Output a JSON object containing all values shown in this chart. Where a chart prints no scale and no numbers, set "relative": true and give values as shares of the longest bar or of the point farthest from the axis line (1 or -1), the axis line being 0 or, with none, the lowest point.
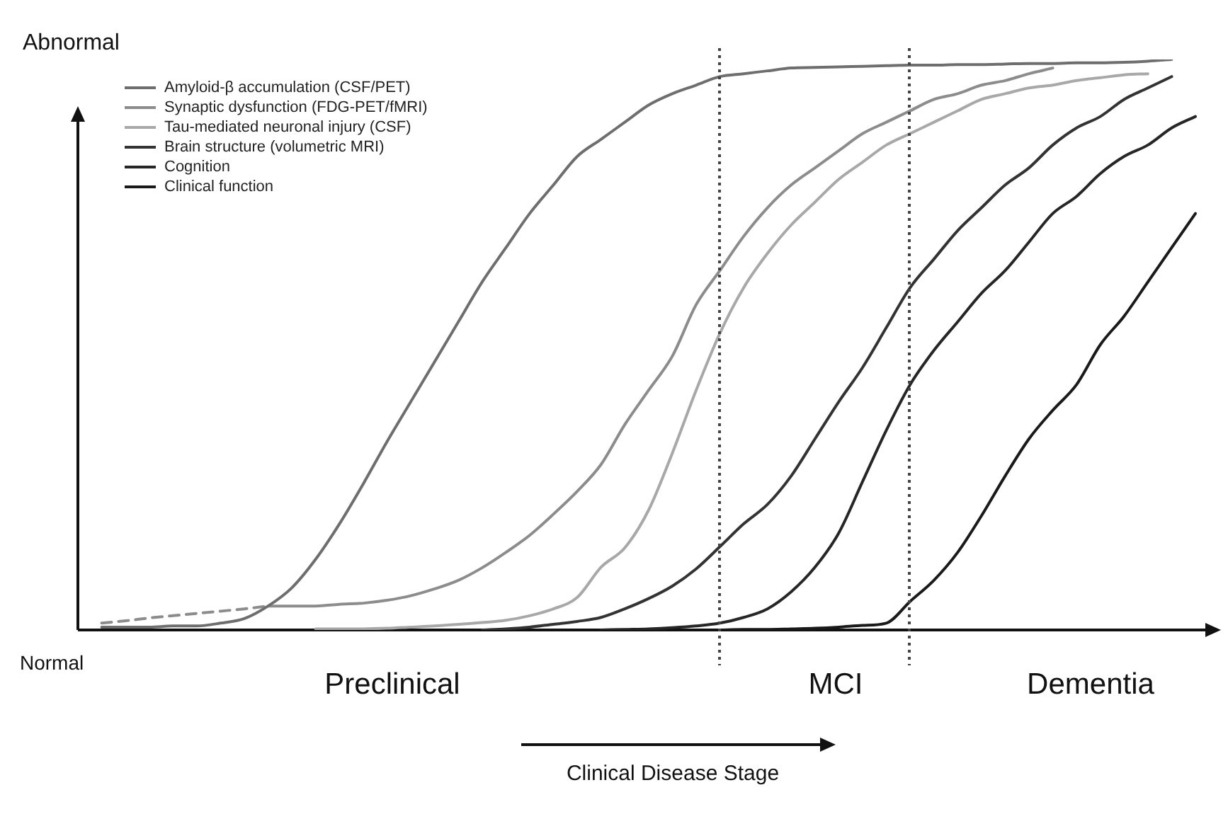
{
  "chart_data": {
    "type": "line",
    "relative": true,
    "legend": "top left",
    "categories": [
      null,
      null,
      null,
      null,
      null,
      null,
      null,
      null,
      null,
      null,
      null,
      null,
      null,
      null,
      null,
      null,
      null,
      null,
      null,
      null,
      null,
      null,
      null,
      null,
      null,
      null,
      null,
      null,
      null,
      null,
      null,
      null,
      null,
      null,
      null,
      null,
      null,
      null,
      null,
      null,
      null,
      null,
      null,
      null,
      null,
      null,
      null,
      null
    ],
    "series": [
      {
        "name": "Amyloid-β accumulation (CSF/PET)",
        "color": "#6e6e6e",
        "values": [
          null,
          0.005,
          0.005,
          0.005,
          0.007,
          0.007,
          0.012,
          0.02,
          0.042,
          0.074,
          0.124,
          0.186,
          0.256,
          0.33,
          0.4,
          0.47,
          0.54,
          0.61,
          0.67,
          0.73,
          0.78,
          0.83,
          0.86,
          0.89,
          0.92,
          0.94,
          0.955,
          0.97,
          0.975,
          0.98,
          0.985,
          0.986,
          0.987,
          0.988,
          0.989,
          0.99,
          0.99,
          0.991,
          0.991,
          0.992,
          0.993,
          0.993,
          0.994,
          0.994,
          0.995,
          0.997,
          1,
          null
        ]
      },
      {
        "name": "Synaptic dysfunction (FDG-PET/fMRI)",
        "color": "#8c8c8c",
        "values": [
          null,
          null,
          null,
          null,
          null,
          null,
          null,
          null,
          0.042,
          0.042,
          0.042,
          0.045,
          0.047,
          0.052,
          0.06,
          0.072,
          0.087,
          0.109,
          0.136,
          0.166,
          0.203,
          0.243,
          0.29,
          0.36,
          0.42,
          0.48,
          0.57,
          0.63,
          0.69,
          0.74,
          0.78,
          0.81,
          0.84,
          0.87,
          0.89,
          0.91,
          0.93,
          0.94,
          0.955,
          0.963,
          0.975,
          0.985,
          null,
          null,
          null,
          null,
          null,
          null
        ]
      },
      {
        "color": "#8c8c8c",
        "line_style": "dashed",
        "values": [
          null,
          0.012,
          0.016,
          0.021,
          0.025,
          0.029,
          0.033,
          0.037,
          0.042,
          null,
          null,
          null,
          null,
          null,
          null,
          null,
          null,
          null,
          null,
          null,
          null,
          null,
          null,
          null,
          null,
          null,
          null,
          null,
          null,
          null,
          null,
          null,
          null,
          null,
          null,
          null,
          null,
          null,
          null,
          null,
          null,
          null,
          null,
          null,
          null,
          null,
          null,
          null
        ]
      },
      {
        "name": "Tau-mediated neuronal injury (CSF)",
        "color": "#a8a8a8",
        "values": [
          null,
          null,
          null,
          null,
          null,
          null,
          null,
          null,
          null,
          null,
          0.002,
          0.002,
          0.002,
          0.003,
          0.005,
          0.007,
          0.01,
          0.013,
          0.017,
          0.025,
          0.037,
          0.057,
          0.11,
          0.144,
          0.21,
          0.31,
          0.42,
          0.52,
          0.6,
          0.66,
          0.71,
          0.75,
          0.79,
          0.82,
          0.85,
          0.87,
          0.89,
          0.91,
          0.93,
          0.94,
          0.95,
          0.955,
          0.963,
          0.968,
          0.973,
          0.975,
          null,
          null
        ]
      },
      {
        "name": "Brain structure (volumetric MRI)",
        "color": "#333333",
        "values": [
          null,
          null,
          null,
          null,
          null,
          null,
          null,
          null,
          null,
          null,
          null,
          null,
          null,
          null,
          null,
          null,
          null,
          0,
          0.002,
          0.005,
          0.01,
          0.015,
          0.022,
          0.037,
          0.055,
          0.077,
          0.107,
          0.146,
          0.186,
          0.22,
          0.27,
          0.335,
          0.4,
          0.46,
          0.53,
          0.6,
          0.65,
          0.7,
          0.74,
          0.78,
          0.81,
          0.85,
          0.88,
          0.9,
          0.93,
          0.95,
          0.97,
          null
        ]
      },
      {
        "name": "Cognition",
        "color": "#262626",
        "values": [
          null,
          null,
          null,
          null,
          null,
          null,
          null,
          null,
          null,
          null,
          null,
          null,
          null,
          null,
          null,
          null,
          null,
          null,
          null,
          null,
          null,
          null,
          0,
          0.001,
          0.002,
          0.004,
          0.007,
          0.012,
          0.022,
          0.037,
          0.067,
          0.11,
          0.17,
          0.26,
          0.35,
          0.43,
          0.49,
          0.54,
          0.59,
          0.63,
          0.68,
          0.73,
          0.76,
          0.8,
          0.83,
          0.85,
          0.88,
          0.9
        ]
      },
      {
        "name": "Clinical function",
        "color": "#1a1a1a",
        "values": [
          null,
          null,
          null,
          null,
          null,
          null,
          null,
          null,
          null,
          null,
          null,
          null,
          null,
          null,
          null,
          null,
          null,
          null,
          null,
          null,
          null,
          null,
          null,
          null,
          null,
          null,
          null,
          0,
          0.001,
          0.001,
          0.002,
          0.003,
          0.005,
          0.008,
          0.012,
          0.05,
          0.087,
          0.136,
          0.2,
          0.27,
          0.335,
          0.385,
          0.43,
          0.5,
          0.55,
          0.61,
          0.67,
          0.73
        ]
      }
    ],
    "annotations": [
      "Abnormal",
      "Normal",
      "Preclinical",
      "MCI",
      "Dementia",
      "Clinical Disease Stage"
    ]
  }
}
